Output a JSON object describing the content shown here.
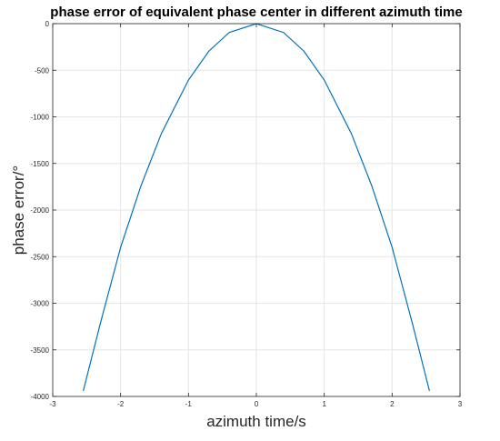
{
  "chart_data": {
    "type": "line",
    "title": "phase error of equivalent phase center in different azimuth time",
    "xlabel": "azimuth time/s",
    "ylabel": "phase error/°",
    "xlim": [
      -3,
      3
    ],
    "ylim": [
      -4000,
      0
    ],
    "xticks": [
      -3,
      -2,
      -1,
      0,
      1,
      2,
      3
    ],
    "yticks": [
      0,
      -500,
      -1000,
      -1500,
      -2000,
      -2500,
      -3000,
      -3500,
      -4000
    ],
    "grid": true,
    "line_color": "#0072BD",
    "series": [
      {
        "x": [
          -2.55,
          -2.3,
          -2.0,
          -1.7,
          -1.4,
          -1.0,
          -0.7,
          -0.4,
          0.0,
          0.4,
          0.7,
          1.0,
          1.4,
          1.7,
          2.0,
          2.3,
          2.55
        ],
        "values": [
          -3940,
          -3220,
          -2400,
          -1740,
          -1180,
          -605,
          -295,
          -95,
          0,
          -95,
          -295,
          -605,
          -1180,
          -1740,
          -2400,
          -3220,
          -3940
        ]
      }
    ]
  }
}
